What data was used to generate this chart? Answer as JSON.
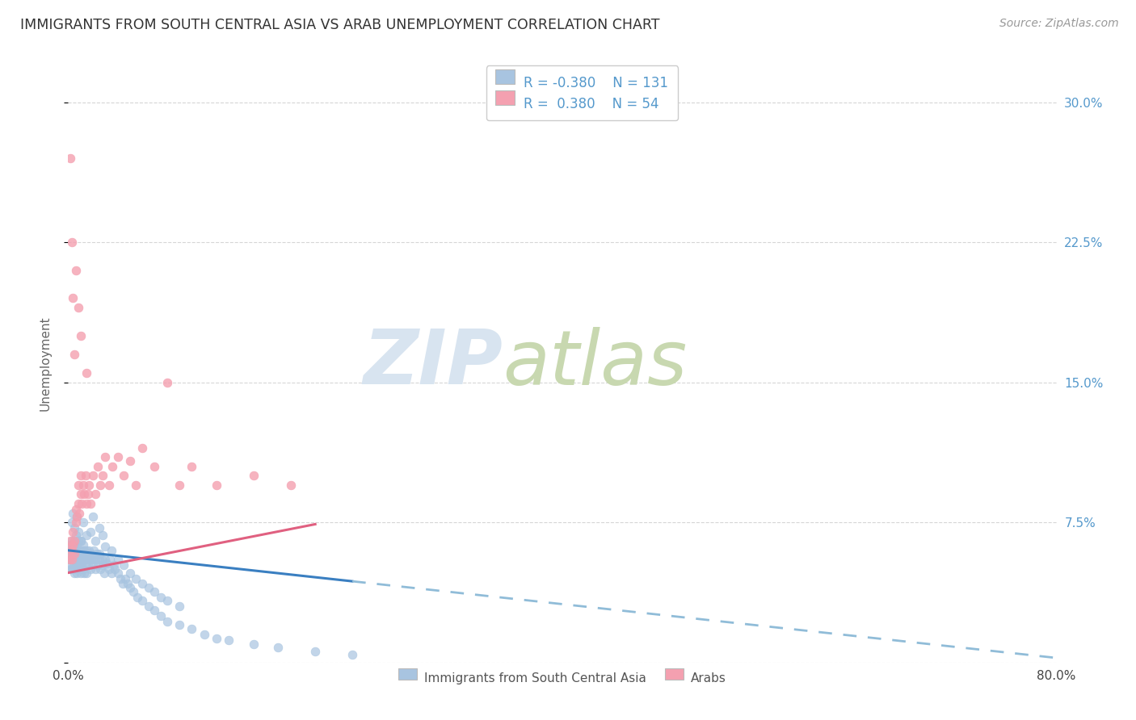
{
  "title": "IMMIGRANTS FROM SOUTH CENTRAL ASIA VS ARAB UNEMPLOYMENT CORRELATION CHART",
  "source": "Source: ZipAtlas.com",
  "ylabel": "Unemployment",
  "xlim": [
    0.0,
    0.8
  ],
  "ylim": [
    0.0,
    0.32
  ],
  "yticks": [
    0.0,
    0.075,
    0.15,
    0.225,
    0.3
  ],
  "ytick_labels": [
    "",
    "7.5%",
    "15.0%",
    "22.5%",
    "30.0%"
  ],
  "xticks": [
    0.0,
    0.8
  ],
  "xtick_labels": [
    "0.0%",
    "80.0%"
  ],
  "blue_R": -0.38,
  "blue_N": 131,
  "pink_R": 0.38,
  "pink_N": 54,
  "blue_color": "#a8c4e0",
  "pink_color": "#f4a0b0",
  "blue_line_color": "#3a7fc1",
  "pink_line_color": "#e06080",
  "blue_dashed_color": "#90bcd8",
  "legend_label_blue": "Immigrants from South Central Asia",
  "legend_label_pink": "Arabs",
  "background_color": "#ffffff",
  "grid_color": "#cccccc",
  "title_color": "#333333",
  "axis_label_color": "#666666",
  "right_axis_color": "#5599cc",
  "watermark_zip": "ZIP",
  "watermark_atlas": "atlas",
  "watermark_color_zip": "#d8e4f0",
  "watermark_color_atlas": "#c8d8b0",
  "blue_line_intercept": 0.06,
  "blue_line_slope": -0.072,
  "pink_line_intercept": 0.048,
  "pink_line_slope": 0.13,
  "blue_scatter_x": [
    0.001,
    0.001,
    0.001,
    0.002,
    0.002,
    0.002,
    0.002,
    0.002,
    0.003,
    0.003,
    0.003,
    0.003,
    0.003,
    0.003,
    0.004,
    0.004,
    0.004,
    0.004,
    0.004,
    0.005,
    0.005,
    0.005,
    0.005,
    0.005,
    0.006,
    0.006,
    0.006,
    0.006,
    0.007,
    0.007,
    0.007,
    0.007,
    0.008,
    0.008,
    0.008,
    0.008,
    0.009,
    0.009,
    0.009,
    0.01,
    0.01,
    0.01,
    0.01,
    0.011,
    0.011,
    0.011,
    0.012,
    0.012,
    0.012,
    0.013,
    0.013,
    0.013,
    0.014,
    0.014,
    0.015,
    0.015,
    0.015,
    0.016,
    0.016,
    0.017,
    0.017,
    0.018,
    0.018,
    0.019,
    0.02,
    0.02,
    0.021,
    0.022,
    0.022,
    0.023,
    0.024,
    0.025,
    0.025,
    0.026,
    0.027,
    0.028,
    0.029,
    0.03,
    0.031,
    0.033,
    0.034,
    0.035,
    0.037,
    0.038,
    0.04,
    0.042,
    0.044,
    0.046,
    0.048,
    0.05,
    0.053,
    0.056,
    0.06,
    0.065,
    0.07,
    0.075,
    0.08,
    0.09,
    0.1,
    0.11,
    0.12,
    0.13,
    0.15,
    0.17,
    0.2,
    0.23,
    0.003,
    0.004,
    0.005,
    0.006,
    0.007,
    0.008,
    0.01,
    0.012,
    0.015,
    0.018,
    0.02,
    0.022,
    0.025,
    0.028,
    0.03,
    0.035,
    0.04,
    0.045,
    0.05,
    0.055,
    0.06,
    0.065,
    0.07,
    0.075,
    0.08,
    0.09
  ],
  "blue_scatter_y": [
    0.058,
    0.063,
    0.055,
    0.06,
    0.055,
    0.063,
    0.057,
    0.05,
    0.062,
    0.055,
    0.058,
    0.05,
    0.065,
    0.052,
    0.057,
    0.063,
    0.05,
    0.055,
    0.06,
    0.058,
    0.053,
    0.048,
    0.063,
    0.055,
    0.06,
    0.055,
    0.05,
    0.065,
    0.052,
    0.058,
    0.063,
    0.048,
    0.055,
    0.06,
    0.05,
    0.065,
    0.055,
    0.052,
    0.06,
    0.058,
    0.053,
    0.065,
    0.048,
    0.06,
    0.055,
    0.052,
    0.058,
    0.05,
    0.063,
    0.055,
    0.06,
    0.048,
    0.055,
    0.052,
    0.06,
    0.055,
    0.048,
    0.058,
    0.052,
    0.055,
    0.06,
    0.055,
    0.05,
    0.058,
    0.055,
    0.052,
    0.06,
    0.055,
    0.05,
    0.058,
    0.052,
    0.058,
    0.055,
    0.05,
    0.055,
    0.052,
    0.048,
    0.055,
    0.053,
    0.05,
    0.055,
    0.048,
    0.052,
    0.05,
    0.048,
    0.045,
    0.042,
    0.045,
    0.042,
    0.04,
    0.038,
    0.035,
    0.033,
    0.03,
    0.028,
    0.025,
    0.022,
    0.02,
    0.018,
    0.015,
    0.013,
    0.012,
    0.01,
    0.008,
    0.006,
    0.004,
    0.075,
    0.08,
    0.072,
    0.068,
    0.078,
    0.07,
    0.065,
    0.075,
    0.068,
    0.07,
    0.078,
    0.065,
    0.072,
    0.068,
    0.062,
    0.06,
    0.055,
    0.052,
    0.048,
    0.045,
    0.042,
    0.04,
    0.038,
    0.035,
    0.033,
    0.03
  ],
  "pink_scatter_x": [
    0.001,
    0.001,
    0.002,
    0.002,
    0.003,
    0.003,
    0.004,
    0.004,
    0.005,
    0.005,
    0.006,
    0.006,
    0.007,
    0.008,
    0.008,
    0.009,
    0.01,
    0.01,
    0.011,
    0.012,
    0.013,
    0.014,
    0.015,
    0.016,
    0.017,
    0.018,
    0.02,
    0.022,
    0.024,
    0.026,
    0.028,
    0.03,
    0.033,
    0.036,
    0.04,
    0.045,
    0.05,
    0.055,
    0.06,
    0.07,
    0.08,
    0.09,
    0.1,
    0.12,
    0.15,
    0.18,
    0.002,
    0.003,
    0.004,
    0.005,
    0.006,
    0.008,
    0.01,
    0.015
  ],
  "pink_scatter_y": [
    0.062,
    0.055,
    0.058,
    0.065,
    0.06,
    0.055,
    0.063,
    0.07,
    0.065,
    0.058,
    0.075,
    0.082,
    0.078,
    0.085,
    0.095,
    0.08,
    0.09,
    0.1,
    0.085,
    0.095,
    0.09,
    0.1,
    0.085,
    0.09,
    0.095,
    0.085,
    0.1,
    0.09,
    0.105,
    0.095,
    0.1,
    0.11,
    0.095,
    0.105,
    0.11,
    0.1,
    0.108,
    0.095,
    0.115,
    0.105,
    0.15,
    0.095,
    0.105,
    0.095,
    0.1,
    0.095,
    0.27,
    0.225,
    0.195,
    0.165,
    0.21,
    0.19,
    0.175,
    0.155
  ]
}
